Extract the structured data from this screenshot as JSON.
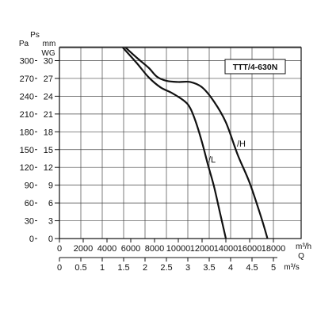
{
  "chart_data": {
    "type": "line",
    "title": "",
    "model_label": "TTT/4-630N",
    "y_axis_units": {
      "pa": "Pa",
      "ps": "Ps",
      "mm": "mm",
      "wg": "WG"
    },
    "y_ticks_pa": [
      "0",
      "30",
      "60",
      "90",
      "120",
      "150",
      "180",
      "210",
      "240",
      "270",
      "300"
    ],
    "y_ticks_wg": [
      "0",
      "3",
      "6",
      "9",
      "12",
      "15",
      "18",
      "21",
      "24",
      "27",
      "30"
    ],
    "x_ticks_m3h": [
      "0",
      "2000",
      "4000",
      "6000",
      "8000",
      "10000",
      "12000",
      "14000",
      "16000",
      "18000"
    ],
    "x_ticks_m3s": [
      "0",
      "0.5",
      "1",
      "1.5",
      "2",
      "2.5",
      "3",
      "3.5",
      "4",
      "4.5",
      "5"
    ],
    "x_unit_m3h": "m³/h",
    "x_unit_q": "Q",
    "x_unit_m3s": "m³/s",
    "xlim": [
      0,
      18000
    ],
    "ylim": [
      0,
      300
    ],
    "grid": true,
    "series": [
      {
        "name": "/H",
        "x": [
          5400,
          6500,
          7500,
          8200,
          9000,
          10000,
          11000,
          12000,
          13000,
          14000,
          15000,
          16000,
          17000,
          17500
        ],
        "y": [
          325,
          305,
          288,
          273,
          266,
          264,
          264,
          255,
          231,
          196,
          141,
          94,
          34,
          0
        ]
      },
      {
        "name": "/L",
        "x": [
          5200,
          6500,
          7500,
          8500,
          9500,
          10500,
          11000,
          11500,
          12000,
          12500,
          13000,
          13500,
          14000
        ],
        "y": [
          325,
          296,
          272,
          255,
          245,
          232,
          220,
          195,
          162,
          124,
          88,
          44,
          0
        ]
      }
    ]
  }
}
